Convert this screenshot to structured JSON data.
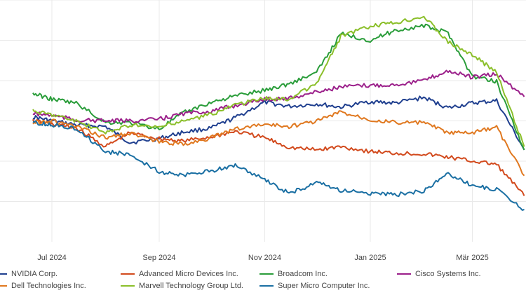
{
  "chart_data": {
    "type": "line",
    "title": "",
    "xlabel": "",
    "ylabel": "",
    "x_ticks": [
      "Jul 2024",
      "Sep 2024",
      "Nov 2024",
      "Jan 2025",
      "Mär 2025"
    ],
    "x": [
      "2024-06-20",
      "2024-07-01",
      "2024-07-15",
      "2024-08-01",
      "2024-08-15",
      "2024-09-01",
      "2024-09-15",
      "2024-10-01",
      "2024-10-15",
      "2024-11-01",
      "2024-11-15",
      "2024-12-01",
      "2024-12-15",
      "2025-01-01",
      "2025-01-15",
      "2025-02-01",
      "2025-02-15",
      "2025-03-01",
      "2025-03-15",
      "2025-03-31"
    ],
    "ylim": [
      0,
      300
    ],
    "grid": true,
    "legend_position": "bottom",
    "series": [
      {
        "name": "NVIDIA Corp.",
        "color": "#1f3f8f",
        "values": [
          155,
          150,
          145,
          143,
          123,
          128,
          136,
          141,
          154,
          173,
          168,
          171,
          167,
          174,
          172,
          179,
          166,
          172,
          175,
          114
        ]
      },
      {
        "name": "Advanced Micro Devices Inc.",
        "color": "#d24a1d",
        "values": [
          150,
          146,
          141,
          118,
          135,
          128,
          125,
          130,
          137,
          129,
          117,
          114,
          118,
          112,
          110,
          109,
          105,
          100,
          96,
          57
        ]
      },
      {
        "name": "Broadcom Inc.",
        "color": "#2a9d3a",
        "values": [
          184,
          177,
          172,
          148,
          148,
          140,
          160,
          173,
          181,
          188,
          196,
          210,
          258,
          250,
          262,
          268,
          259,
          205,
          199,
          114
        ]
      },
      {
        "name": "Cisco Systems Inc.",
        "color": "#9b1f8a",
        "values": [
          159,
          157,
          151,
          150,
          150,
          152,
          159,
          162,
          169,
          177,
          178,
          186,
          192,
          194,
          195,
          200,
          212,
          204,
          208,
          180
        ]
      },
      {
        "name": "Dell Technologies Inc.",
        "color": "#e0781f",
        "values": [
          148,
          150,
          143,
          129,
          135,
          124,
          121,
          129,
          140,
          146,
          143,
          150,
          161,
          152,
          148,
          148,
          135,
          135,
          142,
          82
        ]
      },
      {
        "name": "Marvell Technology Group Ltd.",
        "color": "#8bbf2a",
        "values": [
          162,
          158,
          150,
          135,
          145,
          142,
          150,
          158,
          170,
          178,
          177,
          196,
          255,
          267,
          272,
          280,
          248,
          232,
          210,
          118
        ]
      },
      {
        "name": "Super Micro Computer Inc.",
        "color": "#1a6fa3",
        "values": [
          148,
          145,
          141,
          112,
          108,
          87,
          82,
          88,
          95,
          77,
          60,
          73,
          64,
          60,
          58,
          63,
          85,
          70,
          65,
          40
        ]
      }
    ]
  }
}
